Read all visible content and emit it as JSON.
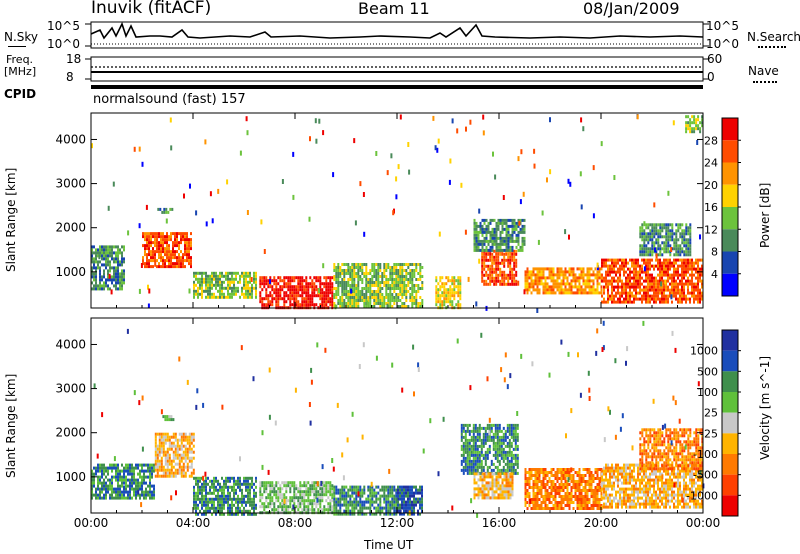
{
  "header": {
    "station": "Inuvik (fitACF)",
    "beam": "Beam 11",
    "date": "08/Jan/2009"
  },
  "top_panels": {
    "nsky_label": "N.Sky",
    "nsky_ticks": [
      "10^5",
      "10^0"
    ],
    "nsearch_label": "N.Search",
    "freq_label": "Freq.",
    "freq_unit": "[MHz]",
    "freq_ticks": [
      "18",
      "8"
    ],
    "nave_label": "Nave",
    "nave_ticks": [
      "60",
      "0"
    ],
    "cpid_label": "CPID",
    "cpid_value": "normalsound (fast) 157"
  },
  "chart_data": [
    {
      "type": "heatmap",
      "title": "",
      "xlabel": "",
      "ylabel": "Slant Range [km]",
      "x_ticks": [
        "00:00",
        "04:00",
        "08:00",
        "12:00",
        "16:00",
        "20:00",
        "00:00"
      ],
      "y_ticks": [
        1000,
        2000,
        3000,
        4000
      ],
      "xlim_hours": [
        0,
        24
      ],
      "ylim_km": [
        180,
        4600
      ],
      "colorbar": {
        "label": "Power [dB]",
        "ticks": [
          "28",
          "24",
          "20",
          "16",
          "12",
          "8",
          "4"
        ],
        "colors": [
          "#ee0000",
          "#ff4c00",
          "#ff9300",
          "#ffd200",
          "#6cc33c",
          "#4a8a5a",
          "#1845b0",
          "#0000ff"
        ]
      },
      "regions": [
        {
          "t0": 0.0,
          "t1": 1.3,
          "r0": 600,
          "r1": 1600,
          "level": 5
        },
        {
          "t0": 2.0,
          "t1": 3.9,
          "r0": 1100,
          "r1": 1900,
          "level": 1
        },
        {
          "t0": 2.6,
          "t1": 3.2,
          "r0": 2350,
          "r1": 2450,
          "level": 5
        },
        {
          "t0": 4.0,
          "t1": 6.5,
          "r0": 400,
          "r1": 1000,
          "level": 4
        },
        {
          "t0": 6.6,
          "t1": 9.5,
          "r0": 180,
          "r1": 900,
          "level": 0
        },
        {
          "t0": 9.5,
          "t1": 13.0,
          "r0": 180,
          "r1": 1200,
          "level": 4
        },
        {
          "t0": 13.5,
          "t1": 14.5,
          "r0": 180,
          "r1": 900,
          "level": 3
        },
        {
          "t0": 15.3,
          "t1": 16.7,
          "r0": 700,
          "r1": 1500,
          "level": 1
        },
        {
          "t0": 15.0,
          "t1": 17.0,
          "r0": 1500,
          "r1": 2200,
          "level": 5
        },
        {
          "t0": 17.0,
          "t1": 20.0,
          "r0": 500,
          "r1": 1100,
          "level": 2
        },
        {
          "t0": 20.0,
          "t1": 24.0,
          "r0": 300,
          "r1": 1300,
          "level": 1
        },
        {
          "t0": 21.5,
          "t1": 23.5,
          "r0": 1400,
          "r1": 2100,
          "level": 5
        },
        {
          "t0": 23.3,
          "t1": 24.0,
          "r0": 4150,
          "r1": 4550,
          "level": 4
        }
      ]
    },
    {
      "type": "heatmap",
      "title": "",
      "xlabel": "Time UT",
      "ylabel": "Slant Range [km]",
      "x_ticks": [
        "00:00",
        "04:00",
        "08:00",
        "12:00",
        "16:00",
        "20:00",
        "00:00"
      ],
      "y_ticks": [
        1000,
        2000,
        3000,
        4000
      ],
      "xlim_hours": [
        0,
        24
      ],
      "ylim_km": [
        180,
        4600
      ],
      "colorbar": {
        "label": "Velocity [m s^-1]",
        "ticks": [
          "1000",
          "500",
          "100",
          "25",
          "-25",
          "-100",
          "-500",
          "-1000"
        ],
        "colors": [
          "#2030a0",
          "#1a4dbb",
          "#3f8f4c",
          "#5fc03a",
          "#c8c8c8",
          "#ffb400",
          "#ff7a00",
          "#ff4000",
          "#ee0000"
        ]
      },
      "regions": [
        {
          "t0": 0.0,
          "t1": 2.5,
          "r0": 500,
          "r1": 1300,
          "level": 2
        },
        {
          "t0": 2.5,
          "t1": 4.0,
          "r0": 1000,
          "r1": 2000,
          "level": 5
        },
        {
          "t0": 2.8,
          "t1": 3.2,
          "r0": 2300,
          "r1": 2400,
          "level": 3
        },
        {
          "t0": 4.0,
          "t1": 6.5,
          "r0": 180,
          "r1": 1000,
          "level": 2
        },
        {
          "t0": 6.6,
          "t1": 9.5,
          "r0": 180,
          "r1": 900,
          "level": 3
        },
        {
          "t0": 9.5,
          "t1": 12.0,
          "r0": 180,
          "r1": 800,
          "level": 2
        },
        {
          "t0": 12.0,
          "t1": 13.0,
          "r0": 180,
          "r1": 800,
          "level": 1
        },
        {
          "t0": 14.5,
          "t1": 16.7,
          "r0": 1100,
          "r1": 2200,
          "level": 2
        },
        {
          "t0": 15.0,
          "t1": 16.5,
          "r0": 500,
          "r1": 1100,
          "level": 5
        },
        {
          "t0": 17.0,
          "t1": 20.0,
          "r0": 300,
          "r1": 1200,
          "level": 6
        },
        {
          "t0": 20.0,
          "t1": 24.0,
          "r0": 300,
          "r1": 1300,
          "level": 5
        },
        {
          "t0": 21.5,
          "t1": 24.0,
          "r0": 1200,
          "r1": 2100,
          "level": 6
        }
      ]
    }
  ]
}
